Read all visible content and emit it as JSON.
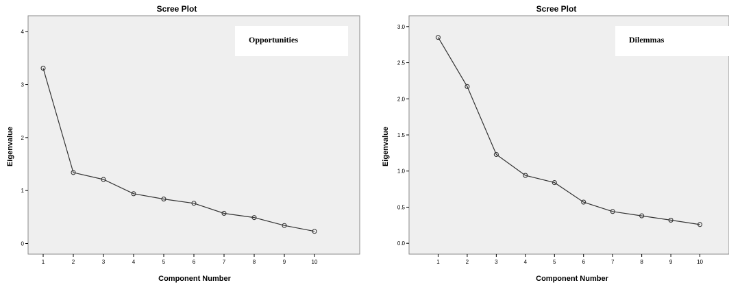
{
  "chart_data": [
    {
      "type": "line",
      "title": "Scree Plot",
      "xlabel": "Component Number",
      "ylabel": "Eigenvalue",
      "annotation": "Opportunities",
      "x": [
        1,
        2,
        3,
        4,
        5,
        6,
        7,
        8,
        9,
        10
      ],
      "values": [
        3.31,
        1.34,
        1.21,
        0.94,
        0.84,
        0.76,
        0.57,
        0.49,
        0.34,
        0.23
      ],
      "xlim": [
        0.5,
        11.5
      ],
      "ylim": [
        -0.2,
        4.3
      ],
      "yticks": [
        0,
        1,
        2,
        3,
        4
      ],
      "ytick_labels": [
        "0",
        "1",
        "2",
        "3",
        "4"
      ],
      "xticks": [
        1,
        2,
        3,
        4,
        5,
        6,
        7,
        8,
        9,
        10
      ],
      "grid": false,
      "colors": {
        "plot_bg": "#efefef",
        "line": "#333333",
        "frame": "#8a8a8a"
      }
    },
    {
      "type": "line",
      "title": "Scree Plot",
      "xlabel": "Component Number",
      "ylabel": "Eigenvalue",
      "annotation": "Dilemmas",
      "x": [
        1,
        2,
        3,
        4,
        5,
        6,
        7,
        8,
        9,
        10
      ],
      "values": [
        2.85,
        2.17,
        1.23,
        0.94,
        0.84,
        0.57,
        0.44,
        0.38,
        0.32,
        0.26
      ],
      "xlim": [
        0.0,
        11.0
      ],
      "ylim": [
        -0.15,
        3.15
      ],
      "yticks": [
        0,
        0.5,
        1,
        1.5,
        2,
        2.5,
        3
      ],
      "ytick_labels": [
        "0.0",
        "0.5",
        "1.0",
        "1.5",
        "2.0",
        "2.5",
        "3.0"
      ],
      "xticks": [
        1,
        2,
        3,
        4,
        5,
        6,
        7,
        8,
        9,
        10
      ],
      "grid": false,
      "colors": {
        "plot_bg": "#efefef",
        "line": "#333333",
        "frame": "#8a8a8a"
      }
    }
  ]
}
